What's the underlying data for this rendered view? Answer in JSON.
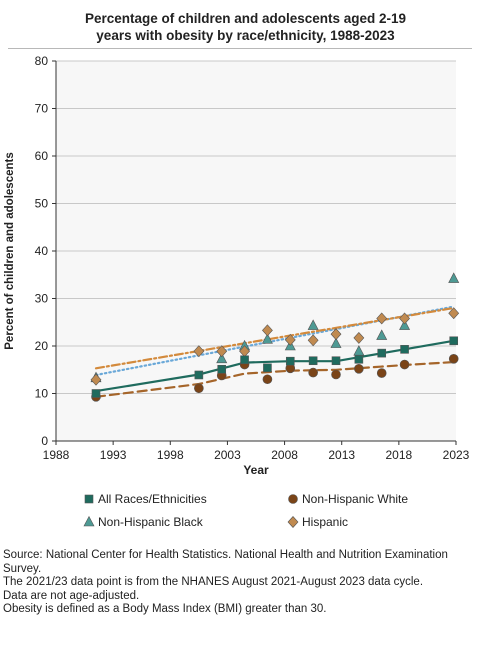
{
  "title_lines": [
    "Percentage of children and adolescents aged 2-19",
    "years with obesity by race/ethnicity, 1988-2023"
  ],
  "notes": [
    "Source: National Center for Health Statistics. National Health and Nutrition Examination Survey.",
    "The 2021/23 data point is from the NHANES August 2021-August 2023 data cycle.",
    "Data are not age-adjusted.",
    "Obesity is defined as a Body Mass Index (BMI) greater than 30."
  ],
  "chart_data": {
    "type": "scatter",
    "xlabel": "Year",
    "ylabel": "Percent of children and adolescents",
    "xlim": [
      1988,
      2023
    ],
    "ylim": [
      0,
      80
    ],
    "xticks": [
      "1988",
      "1993",
      "1998",
      "2003",
      "2008",
      "2013",
      "2018",
      "2023"
    ],
    "xtick_values": [
      1988,
      1993,
      1998,
      2003,
      2008,
      2013,
      2018,
      2023
    ],
    "yticks": [
      "0",
      "10",
      "20",
      "30",
      "40",
      "50",
      "60",
      "70",
      "80"
    ],
    "ytick_values": [
      0,
      10,
      20,
      30,
      40,
      50,
      60,
      70,
      80
    ],
    "grid": "horizontal",
    "legend_position": "bottom",
    "series": [
      {
        "name": "All Races/Ethnicities",
        "marker": "square",
        "color": "#1f6b5e",
        "line": "solid",
        "line_color": "#1f6b5e",
        "x": [
          1991.5,
          2000.5,
          2002.5,
          2004.5,
          2006.5,
          2008.5,
          2010.5,
          2012.5,
          2014.5,
          2016.5,
          2018.5,
          2022.8
        ],
        "values": [
          10.0,
          13.9,
          15.1,
          17.1,
          15.4,
          16.8,
          16.9,
          16.9,
          17.2,
          18.5,
          19.3,
          21.1
        ],
        "trend": [
          [
            1991.5,
            10.5
          ],
          [
            2000.5,
            14.0
          ],
          [
            2004.5,
            16.5
          ],
          [
            2008.5,
            16.8
          ],
          [
            2012.5,
            16.8
          ],
          [
            2018.5,
            19.3
          ],
          [
            2022.8,
            21.1
          ]
        ]
      },
      {
        "name": "Non-Hispanic White",
        "marker": "circle",
        "color": "#7a4418",
        "line": "dashed",
        "line_color": "#a5652a",
        "x": [
          1991.5,
          2000.5,
          2002.5,
          2004.5,
          2006.5,
          2008.5,
          2010.5,
          2012.5,
          2014.5,
          2016.5,
          2018.5,
          2022.8
        ],
        "values": [
          9.3,
          11.1,
          13.8,
          16.1,
          13.0,
          15.3,
          14.4,
          14.0,
          15.2,
          14.3,
          16.1,
          17.3
        ],
        "trend": [
          [
            1991.5,
            9.3
          ],
          [
            2000.5,
            12.0
          ],
          [
            2004.5,
            14.2
          ],
          [
            2008.5,
            14.8
          ],
          [
            2012.5,
            15.0
          ],
          [
            2018.5,
            16.0
          ],
          [
            2022.8,
            16.6
          ]
        ]
      },
      {
        "name": "Non-Hispanic Black",
        "marker": "triangle",
        "color": "#4e9a94",
        "line": "dotted",
        "line_color": "#6aa8d8",
        "x": [
          1991.5,
          2002.5,
          2004.5,
          2006.5,
          2008.5,
          2010.5,
          2012.5,
          2014.5,
          2016.5,
          2018.5,
          2022.8
        ],
        "values": [
          13.3,
          17.3,
          20.0,
          21.4,
          20.0,
          24.3,
          20.5,
          18.9,
          22.2,
          24.3,
          34.2
        ],
        "trend": [
          [
            1991.5,
            13.9
          ],
          [
            2022.8,
            28.3
          ]
        ]
      },
      {
        "name": "Hispanic",
        "marker": "diamond",
        "color": "#c08a50",
        "line": "dashdot",
        "line_color": "#d38a3c",
        "x": [
          1991.5,
          2000.5,
          2002.5,
          2004.5,
          2006.5,
          2008.5,
          2010.5,
          2012.5,
          2014.5,
          2016.5,
          2018.5,
          2022.8
        ],
        "values": [
          12.9,
          18.9,
          18.9,
          18.9,
          23.3,
          21.3,
          21.2,
          22.5,
          21.7,
          25.8,
          25.8,
          26.9
        ],
        "trend": [
          [
            1991.5,
            15.3
          ],
          [
            2022.8,
            28.0
          ]
        ]
      }
    ]
  }
}
